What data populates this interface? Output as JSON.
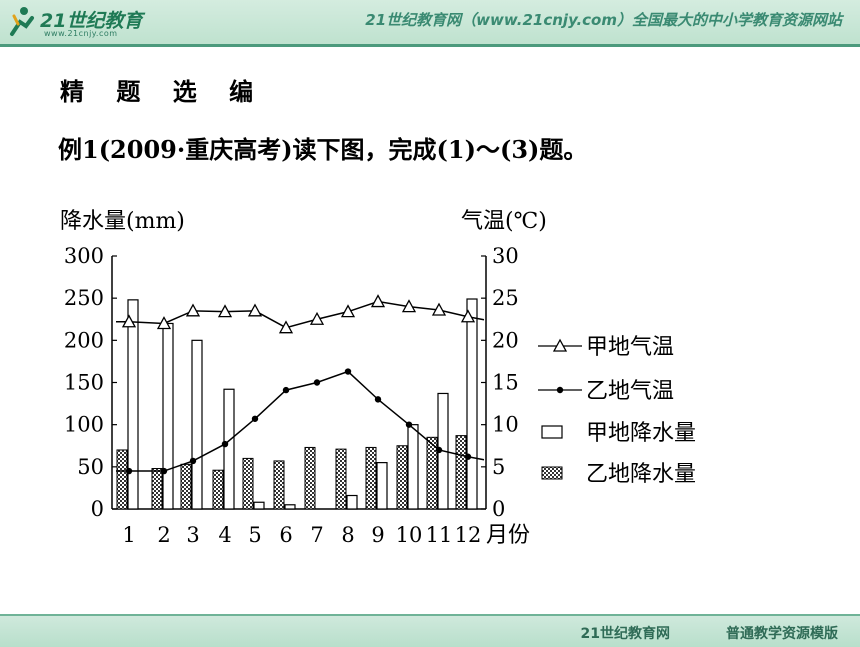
{
  "header": {
    "logo_text": "21世纪教育",
    "logo_url": "www.21cnjy.com",
    "banner": "21世纪教育网（www.21cnjy.com）全国最大的中小学教育资源网站"
  },
  "slide": {
    "heading": "精 题 选 编",
    "question": "例1(2009·重庆高考)读下图，完成(1)～(3)题。"
  },
  "footer": {
    "left": "21世纪教育网",
    "right": "普通教学资源模版"
  },
  "chart_data": {
    "type": "bar+line",
    "categories": [
      "1",
      "2",
      "3",
      "4",
      "5",
      "6",
      "7",
      "8",
      "9",
      "10",
      "11",
      "12"
    ],
    "xlabel": "月份",
    "ylabel_left": "降水量(mm)",
    "ylabel_right": "气温(℃)",
    "ylim_left": [
      0,
      300
    ],
    "ylim_right": [
      0,
      30
    ],
    "yticks_left": [
      "0",
      "50",
      "100",
      "150",
      "200",
      "250",
      "300"
    ],
    "yticks_right": [
      "0",
      "5",
      "10",
      "15",
      "20",
      "25",
      "30"
    ],
    "grid": false,
    "legend_placement": "right",
    "series": [
      {
        "name": "甲地气温",
        "kind": "line",
        "marker": "triangle",
        "axis": "right",
        "values": [
          22.2,
          22.0,
          23.5,
          23.4,
          23.5,
          21.5,
          22.5,
          23.4,
          24.6,
          24.0,
          23.6,
          22.8
        ]
      },
      {
        "name": "乙地气温",
        "kind": "line",
        "marker": "dot",
        "axis": "right",
        "values": [
          4.5,
          4.5,
          5.7,
          7.7,
          10.7,
          14.1,
          15.0,
          16.3,
          13.0,
          10.0,
          7.0,
          6.2
        ]
      },
      {
        "name": "甲地降水量",
        "kind": "bar",
        "pattern": "empty",
        "axis": "left",
        "values": [
          248,
          220,
          200,
          142,
          8,
          5,
          0,
          16,
          55,
          100,
          137,
          249
        ]
      },
      {
        "name": "乙地降水量",
        "kind": "bar",
        "pattern": "hatched",
        "axis": "left",
        "values": [
          70,
          48,
          53,
          46,
          60,
          57,
          73,
          71,
          73,
          75,
          85,
          87
        ]
      }
    ]
  }
}
